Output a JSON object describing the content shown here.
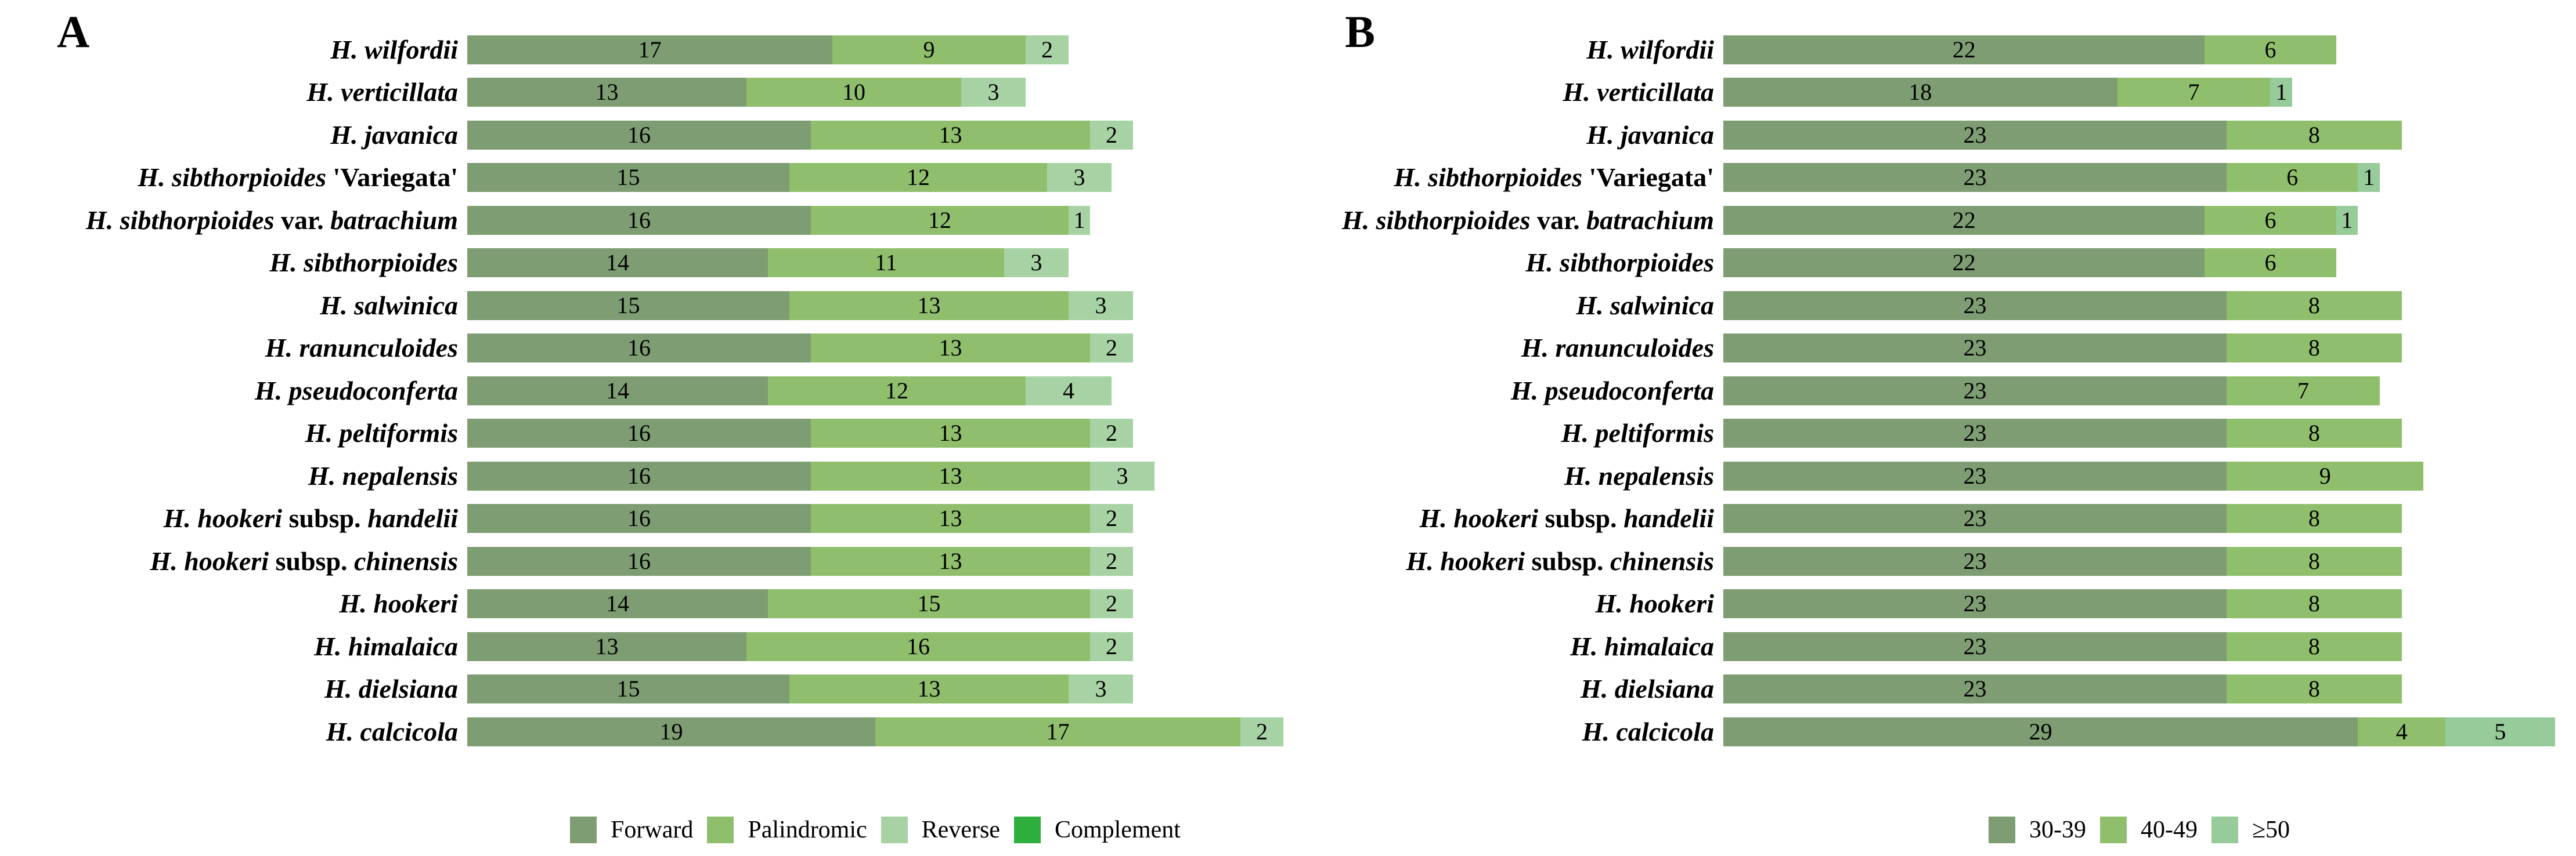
{
  "figure": {
    "background": "#ffffff",
    "text_color": "#000000"
  },
  "chart_data": [
    {
      "type": "bar",
      "orientation": "horizontal",
      "stacked": true,
      "panel_label": "A",
      "legend_position": "bottom",
      "value_labels": "inside-center",
      "axes_visible": false,
      "xlim": [
        0,
        38
      ],
      "categories": [
        "H. wilfordii",
        "H. verticillata",
        "H. javanica",
        "H. sibthorpioides 'Variegata'",
        "H. sibthorpioides var. batrachium",
        "H. sibthorpioides",
        "H. salwinica",
        "H. ranunculoides",
        "H. pseudoconferta",
        "H. peltiformis",
        "H. nepalensis",
        "H. hookeri subsp. handelii",
        "H. hookeri subsp. chinensis",
        "H. hookeri",
        "H. himalaica",
        "H. dielsiana",
        "H. calcicola"
      ],
      "categories_rich": [
        [
          [
            "H. wilfordii",
            true
          ]
        ],
        [
          [
            "H. verticillata",
            true
          ]
        ],
        [
          [
            "H. javanica",
            true
          ]
        ],
        [
          [
            "H. sibthorpioides ",
            true
          ],
          [
            "'Variegata'",
            false
          ]
        ],
        [
          [
            "H. sibthorpioides ",
            true
          ],
          [
            "var. ",
            false
          ],
          [
            "batrachium",
            true
          ]
        ],
        [
          [
            "H. sibthorpioides",
            true
          ]
        ],
        [
          [
            "H. salwinica",
            true
          ]
        ],
        [
          [
            "H. ranunculoides",
            true
          ]
        ],
        [
          [
            "H. pseudoconferta",
            true
          ]
        ],
        [
          [
            "H. peltiformis",
            true
          ]
        ],
        [
          [
            "H. nepalensis",
            true
          ]
        ],
        [
          [
            "H. hookeri ",
            true
          ],
          [
            "subsp. ",
            false
          ],
          [
            "handelii",
            true
          ]
        ],
        [
          [
            "H. hookeri ",
            true
          ],
          [
            "subsp. ",
            false
          ],
          [
            "chinensis",
            true
          ]
        ],
        [
          [
            "H. hookeri",
            true
          ]
        ],
        [
          [
            "H. himalaica",
            true
          ]
        ],
        [
          [
            "H. dielsiana",
            true
          ]
        ],
        [
          [
            "H. calcicola",
            true
          ]
        ]
      ],
      "series": [
        {
          "name": "Forward",
          "color": "#7E9D72",
          "values": [
            17,
            13,
            16,
            15,
            16,
            14,
            15,
            16,
            14,
            16,
            16,
            16,
            16,
            14,
            13,
            15,
            19
          ]
        },
        {
          "name": "Palindromic",
          "color": "#8FBF6D",
          "values": [
            9,
            10,
            13,
            12,
            12,
            11,
            13,
            13,
            12,
            13,
            13,
            13,
            13,
            15,
            16,
            13,
            17
          ]
        },
        {
          "name": "Reverse",
          "color": "#A7D3A4",
          "values": [
            2,
            3,
            2,
            3,
            1,
            3,
            3,
            2,
            4,
            2,
            3,
            2,
            2,
            2,
            2,
            3,
            2
          ]
        },
        {
          "name": "Complement",
          "color": "#2EAE3C",
          "values": [
            0,
            0,
            0,
            0,
            0,
            0,
            0,
            0,
            0,
            0,
            0,
            0,
            0,
            0,
            0,
            0,
            0
          ]
        }
      ]
    },
    {
      "type": "bar",
      "orientation": "horizontal",
      "stacked": true,
      "panel_label": "B",
      "legend_position": "bottom",
      "value_labels": "inside-center",
      "axes_visible": false,
      "xlim": [
        0,
        38
      ],
      "categories": [
        "H. wilfordii",
        "H. verticillata",
        "H. javanica",
        "H. sibthorpioides 'Variegata'",
        "H. sibthorpioides var. batrachium",
        "H. sibthorpioides",
        "H. salwinica",
        "H. ranunculoides",
        "H. pseudoconferta",
        "H. peltiformis",
        "H. nepalensis",
        "H. hookeri subsp. handelii",
        "H. hookeri subsp. chinensis",
        "H. hookeri",
        "H. himalaica",
        "H. dielsiana",
        "H. calcicola"
      ],
      "categories_rich": [
        [
          [
            "H. wilfordii",
            true
          ]
        ],
        [
          [
            "H. verticillata",
            true
          ]
        ],
        [
          [
            "H. javanica",
            true
          ]
        ],
        [
          [
            "H. sibthorpioides ",
            true
          ],
          [
            "'Variegata'",
            false
          ]
        ],
        [
          [
            "H. sibthorpioides ",
            true
          ],
          [
            "var. ",
            false
          ],
          [
            "batrachium",
            true
          ]
        ],
        [
          [
            "H. sibthorpioides",
            true
          ]
        ],
        [
          [
            "H. salwinica",
            true
          ]
        ],
        [
          [
            "H. ranunculoides",
            true
          ]
        ],
        [
          [
            "H. pseudoconferta",
            true
          ]
        ],
        [
          [
            "H. peltiformis",
            true
          ]
        ],
        [
          [
            "H. nepalensis",
            true
          ]
        ],
        [
          [
            "H. hookeri ",
            true
          ],
          [
            "subsp. ",
            false
          ],
          [
            "handelii",
            true
          ]
        ],
        [
          [
            "H. hookeri ",
            true
          ],
          [
            "subsp. ",
            false
          ],
          [
            "chinensis",
            true
          ]
        ],
        [
          [
            "H. hookeri",
            true
          ]
        ],
        [
          [
            "H. himalaica",
            true
          ]
        ],
        [
          [
            "H. dielsiana",
            true
          ]
        ],
        [
          [
            "H. calcicola",
            true
          ]
        ]
      ],
      "series": [
        {
          "name": "30-39",
          "color": "#7E9D72",
          "values": [
            22,
            18,
            23,
            23,
            22,
            22,
            23,
            23,
            23,
            23,
            23,
            23,
            23,
            23,
            23,
            23,
            29
          ]
        },
        {
          "name": "40-49",
          "color": "#8FBF6D",
          "values": [
            6,
            7,
            8,
            6,
            6,
            6,
            8,
            8,
            7,
            8,
            9,
            8,
            8,
            8,
            8,
            8,
            4
          ]
        },
        {
          "name": "≥50",
          "color": "#97CB9A",
          "values": [
            0,
            1,
            0,
            1,
            1,
            0,
            0,
            0,
            0,
            0,
            0,
            0,
            0,
            0,
            0,
            0,
            5
          ]
        }
      ]
    }
  ]
}
